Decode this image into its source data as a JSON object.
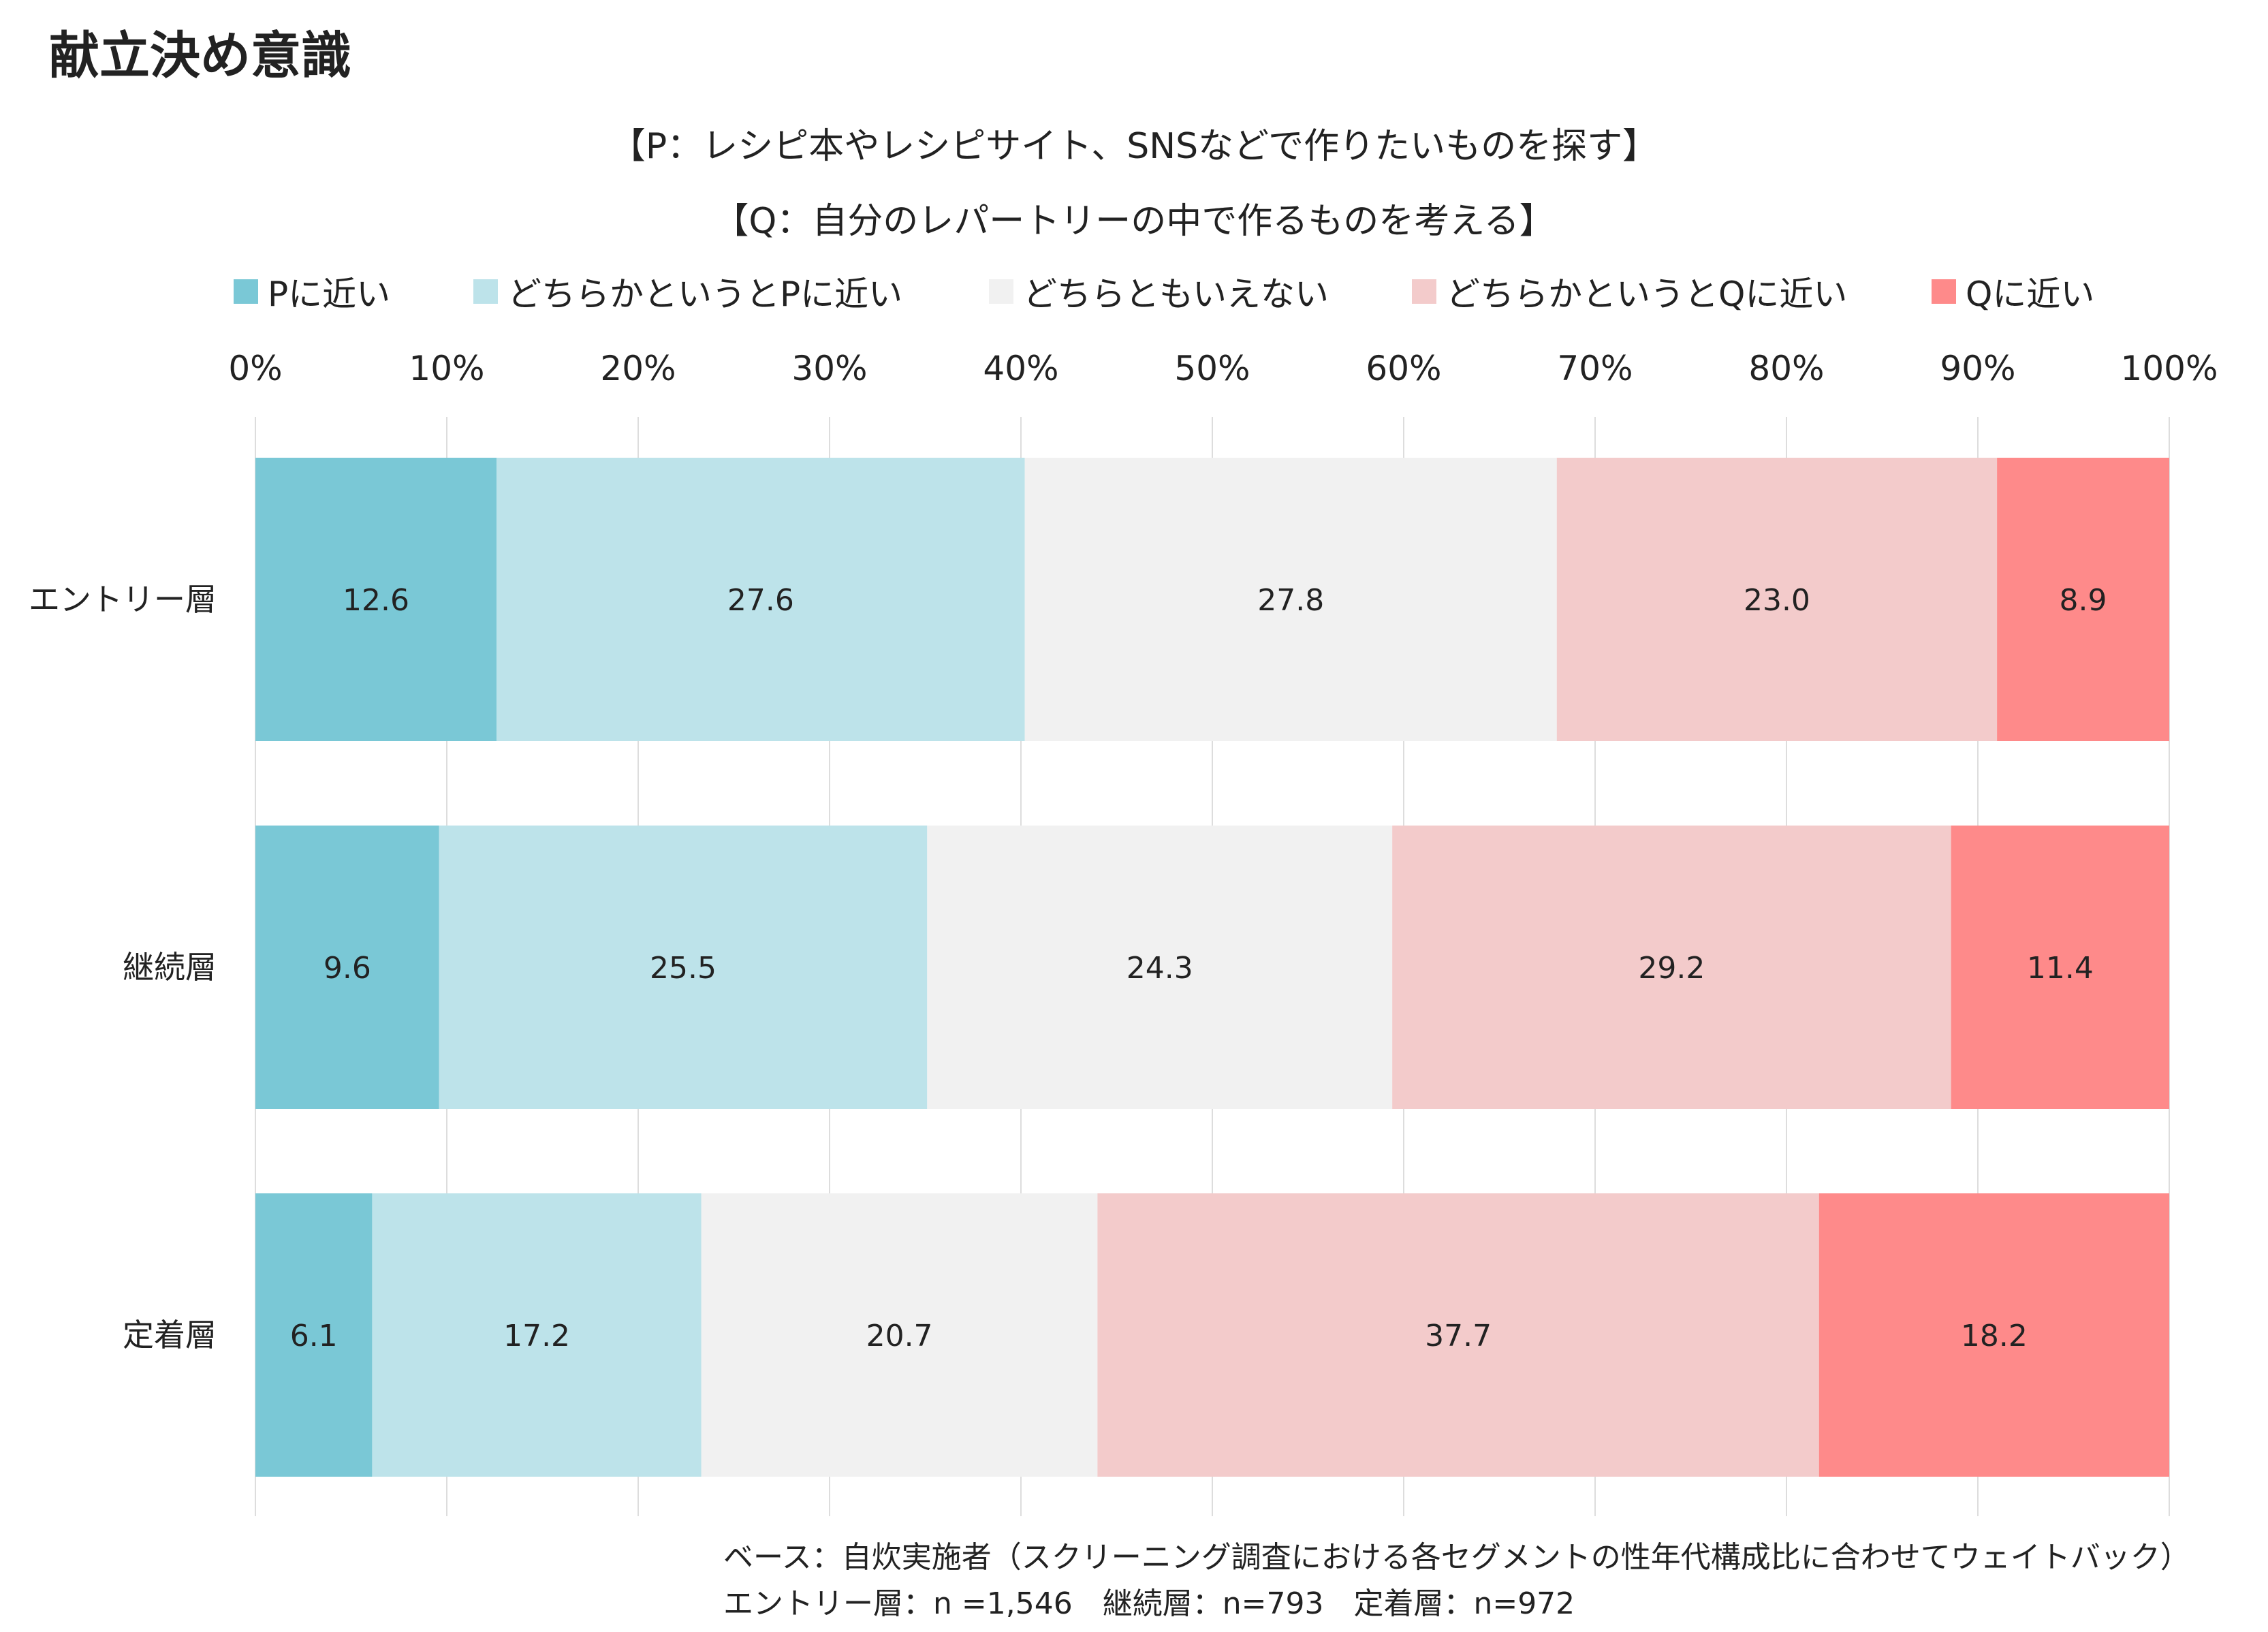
{
  "chart_data": {
    "type": "bar",
    "orientation": "horizontal",
    "stacked": true,
    "title": "献立決め意識",
    "subtitle_p": "【P：レシピ本やレシピサイト、SNSなどで作りたいものを探す】",
    "subtitle_q": "【Q：自分のレパートリーの中で作るものを考える】",
    "categories": [
      "エントリー層",
      "継続層",
      "定着層"
    ],
    "series": [
      {
        "name": "Pに近い",
        "color": "#7ac8d6",
        "values": [
          12.6,
          9.6,
          6.1
        ]
      },
      {
        "name": "どちらかというとPに近い",
        "color": "#bde3ea",
        "values": [
          27.6,
          25.5,
          17.2
        ]
      },
      {
        "name": "どちらともいえない",
        "color": "#f1f1f1",
        "values": [
          27.8,
          24.3,
          20.7
        ]
      },
      {
        "name": "どちらかというとQに近い",
        "color": "#f3cbcb",
        "values": [
          23.0,
          29.2,
          37.7
        ]
      },
      {
        "name": "Qに近い",
        "color": "#fe8a8a",
        "values": [
          8.9,
          11.4,
          18.2
        ]
      }
    ],
    "xticks": [
      "0%",
      "10%",
      "20%",
      "30%",
      "40%",
      "50%",
      "60%",
      "70%",
      "80%",
      "90%",
      "100%"
    ],
    "xlim": [
      0,
      100
    ],
    "grid": true,
    "legend_position": "top",
    "xaxis_position": "top"
  },
  "footnote": {
    "line1": "ベース：自炊実施者（スクリーニング調査における各セグメントの性年代構成比に合わせてウェイトバック）",
    "line2": "エントリー層：n =1,546　継続層：n=793　定着層：n=972"
  }
}
